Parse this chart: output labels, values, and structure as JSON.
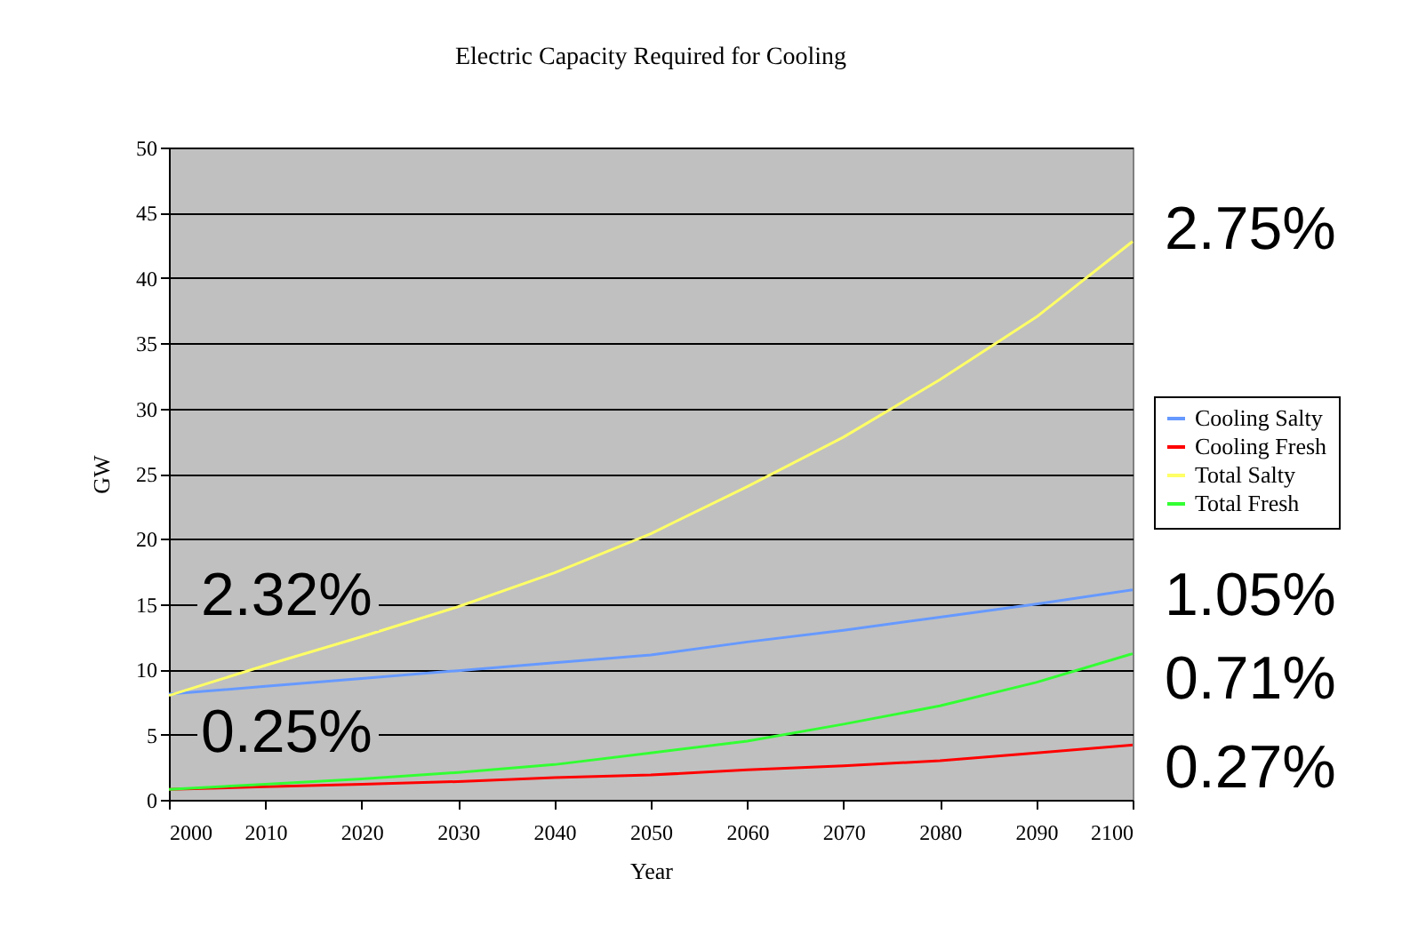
{
  "chart_data": {
    "type": "line",
    "title": "Electric Capacity Required for Cooling",
    "xlabel": "Year",
    "ylabel": "GW",
    "x": [
      2000,
      2010,
      2020,
      2030,
      2040,
      2050,
      2060,
      2070,
      2080,
      2090,
      2100
    ],
    "series": [
      {
        "name": "Cooling Salty",
        "color": "#6699ff",
        "values": [
          8.1,
          8.7,
          9.3,
          9.9,
          10.5,
          11.1,
          12.1,
          13,
          14,
          15,
          16.1
        ]
      },
      {
        "name": "Cooling Fresh",
        "color": "#ff0000",
        "values": [
          0.8,
          1.0,
          1.2,
          1.4,
          1.7,
          1.9,
          2.3,
          2.6,
          3.0,
          3.6,
          4.2
        ]
      },
      {
        "name": "Total Salty",
        "color": "#ffff66",
        "values": [
          8,
          10.3,
          12.5,
          14.8,
          17.4,
          20.4,
          24,
          27.8,
          32.2,
          37,
          42.8
        ]
      },
      {
        "name": "Total Fresh",
        "color": "#33ff33",
        "values": [
          0.8,
          1.2,
          1.6,
          2.1,
          2.7,
          3.6,
          4.5,
          5.8,
          7.2,
          9,
          11.2
        ]
      }
    ],
    "xlim": [
      2000,
      2100
    ],
    "xticks": [
      2000,
      2010,
      2020,
      2030,
      2040,
      2050,
      2060,
      2070,
      2080,
      2090,
      2100
    ],
    "ylim": [
      0,
      50
    ],
    "yticks": [
      0,
      5,
      10,
      15,
      20,
      25,
      30,
      35,
      40,
      45,
      50
    ],
    "grid": "y",
    "legend": "right",
    "marker": "none",
    "line_style": "solid",
    "annotations": [
      "2.75%",
      "2.32%",
      "1.05%",
      "0.71%",
      "0.25%",
      "0.27%"
    ]
  }
}
